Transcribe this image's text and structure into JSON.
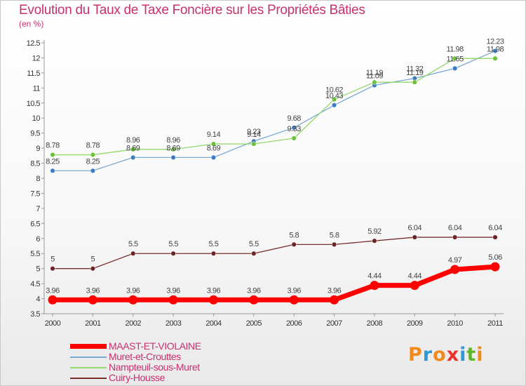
{
  "logo": {
    "letters": [
      "P",
      "r",
      "o",
      "x",
      "i",
      "t",
      "i"
    ],
    "colors": [
      "#f28a1a",
      "#2b9ad6",
      "#f28a1a",
      "#e8322b",
      "#2b9ad6",
      "#62b531",
      "#f28a1a"
    ]
  },
  "chart_data": {
    "type": "line",
    "title": "Evolution du Taux de Taxe Foncière sur les Propriétés Bâties",
    "subtitle": "(en %)",
    "x": [
      "2000",
      "2001",
      "2002",
      "2003",
      "2004",
      "2005",
      "2006",
      "2007",
      "2008",
      "2009",
      "2010",
      "2011"
    ],
    "ylim": [
      3.5,
      12.5
    ],
    "yticks": [
      "3.5",
      "4",
      "4.5",
      "5",
      "5.5",
      "6",
      "6.5",
      "7",
      "7.5",
      "8",
      "8.5",
      "9",
      "9.5",
      "10",
      "10.5",
      "11",
      "11.5",
      "12",
      "12.5"
    ],
    "grid": false,
    "legend_position": "bottom-left",
    "series": [
      {
        "name": "MAAST-ET-VIOLAINE",
        "color": "#ff0000",
        "highlight": true,
        "values": [
          3.96,
          3.96,
          3.96,
          3.96,
          3.96,
          3.96,
          3.96,
          3.96,
          4.44,
          4.44,
          4.97,
          5.06
        ],
        "labels": [
          "3.96",
          "3.96",
          "3.96",
          "3.96",
          "3.96",
          "3.96",
          "3.96",
          "3.96",
          "4.44",
          "4.44",
          "4.97",
          "5.06"
        ]
      },
      {
        "name": "Muret-et-Crouttes",
        "color": "#7aaad2",
        "marker": "#3d7cc4",
        "values": [
          8.25,
          8.25,
          8.69,
          8.69,
          8.69,
          9.23,
          9.68,
          10.43,
          11.09,
          11.32,
          11.65,
          12.23
        ],
        "labels": [
          "8.25",
          "8.25",
          "8.69",
          "8.69",
          "8.69",
          "9.23",
          "9.68",
          "10.43",
          "11.09",
          "11.32",
          "11.65",
          "12.23"
        ]
      },
      {
        "name": "Nampteuil-sous-Muret",
        "color": "#92d86a",
        "marker": "#6cc23a",
        "values": [
          8.78,
          8.78,
          8.96,
          8.96,
          9.14,
          9.14,
          9.33,
          10.62,
          11.19,
          11.19,
          11.98,
          11.98
        ],
        "labels": [
          "8.78",
          "8.78",
          "8.96",
          "8.96",
          "9.14",
          "9.14",
          "9.33",
          "10.62",
          "11.19",
          "11.19",
          "11.98",
          "11.98"
        ]
      },
      {
        "name": "Cuiry-Housse",
        "color": "#7a2e2e",
        "marker": "#6a2424",
        "values": [
          5,
          5,
          5.5,
          5.5,
          5.5,
          5.5,
          5.8,
          5.8,
          5.92,
          6.04,
          6.04,
          6.04
        ],
        "labels": [
          "5",
          "5",
          "5.5",
          "5.5",
          "5.5",
          "5.5",
          "5.8",
          "5.8",
          "5.92",
          "6.04",
          "6.04",
          "6.04"
        ]
      }
    ]
  }
}
